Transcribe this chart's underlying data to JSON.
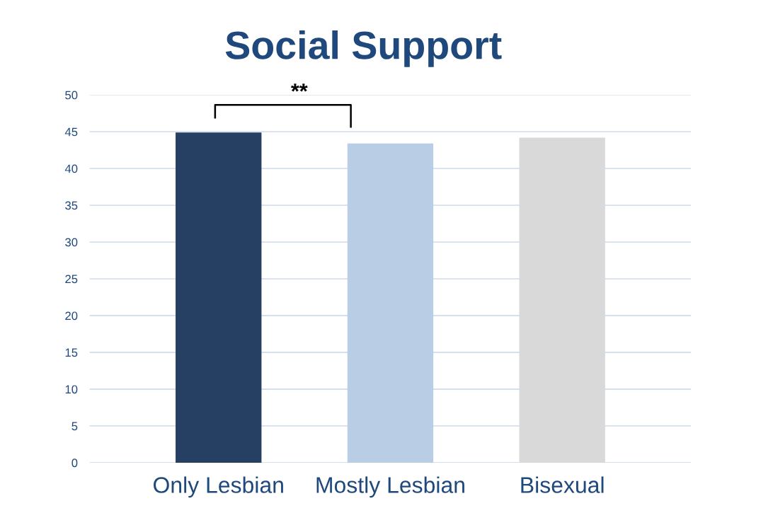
{
  "chart_data": {
    "type": "bar",
    "title": "Social Support",
    "categories": [
      "Only Lesbian",
      "Mostly Lesbian",
      "Bisexual"
    ],
    "values": [
      44.9,
      43.4,
      44.2
    ],
    "colors": [
      "#264063",
      "#b9cde4",
      "#d9d9d9"
    ],
    "ylim": [
      0,
      50
    ],
    "yticks": [
      0,
      5,
      10,
      15,
      20,
      25,
      30,
      35,
      40,
      45,
      50
    ],
    "grid": "y",
    "legend": false,
    "annotations": [
      "**"
    ]
  }
}
